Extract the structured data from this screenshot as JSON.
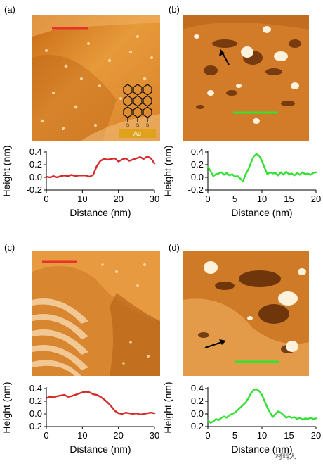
{
  "panels": [
    {
      "label": "(a)",
      "image": "stm-topography-gold-steps",
      "scalebar_color": "#e8322a",
      "inset_text": "Au",
      "molecule": "hexabenzocoronene-thiol-icon"
    },
    {
      "label": "(b)",
      "image": "stm-topography-islands-arrow",
      "scalebar_color": "#2ee62e"
    },
    {
      "label": "(c)",
      "image": "stm-topography-terraces",
      "scalebar_color": "#e8322a"
    },
    {
      "label": "(d)",
      "image": "stm-topography-islands-arrow",
      "scalebar_color": "#2ee62e"
    }
  ],
  "watermark": "材料人",
  "chart_data": [
    {
      "type": "line",
      "xlabel": "Distance (nm)",
      "ylabel": "Height (nm)",
      "xlim": [
        0,
        30
      ],
      "ylim": [
        -0.2,
        0.4
      ],
      "xticks": [
        0,
        10,
        20,
        30
      ],
      "yticks": [
        "0.4",
        "0.2",
        "0.0",
        "-0.2"
      ],
      "color": "#d42a2a",
      "series": [
        {
          "x": [
            0,
            1,
            2,
            3,
            4,
            5,
            6,
            7,
            8,
            9,
            10,
            11,
            12,
            13,
            14,
            15,
            16,
            17,
            18,
            19,
            20,
            21,
            22,
            23,
            24,
            25,
            26,
            27,
            28,
            29,
            30
          ],
          "y": [
            0.01,
            0.0,
            0.02,
            0.0,
            0.02,
            0.03,
            0.02,
            0.04,
            0.02,
            0.03,
            0.03,
            0.03,
            0.01,
            0.04,
            0.18,
            0.26,
            0.29,
            0.28,
            0.29,
            0.3,
            0.25,
            0.28,
            0.3,
            0.26,
            0.28,
            0.3,
            0.32,
            0.29,
            0.33,
            0.3,
            0.22
          ]
        }
      ]
    },
    {
      "type": "line",
      "xlabel": "Distance (nm)",
      "ylabel": "Height (nm)",
      "xlim": [
        0,
        20
      ],
      "ylim": [
        -0.2,
        0.4
      ],
      "xticks": [
        0,
        5,
        10,
        15,
        20
      ],
      "yticks": [
        "0.4",
        "0.2",
        "0.0",
        "-0.2"
      ],
      "color": "#33e033",
      "series": [
        {
          "x": [
            0,
            0.5,
            1,
            1.5,
            2,
            2.5,
            3,
            3.5,
            4,
            4.5,
            5,
            5.5,
            6,
            6.5,
            7,
            7.5,
            8,
            8.5,
            9,
            9.5,
            10,
            10.5,
            11,
            11.5,
            12,
            12.5,
            13,
            13.5,
            14,
            14.5,
            15,
            15.5,
            16,
            16.5,
            17,
            17.5,
            18,
            18.5,
            19,
            19.5,
            20
          ],
          "y": [
            0.17,
            0.1,
            0.02,
            0.05,
            0.06,
            0.08,
            0.04,
            0.07,
            0.03,
            0.05,
            0.01,
            0.02,
            -0.02,
            -0.06,
            0.05,
            0.13,
            0.24,
            0.33,
            0.37,
            0.34,
            0.26,
            0.15,
            0.05,
            0.08,
            0.06,
            0.07,
            0.03,
            0.08,
            0.04,
            0.09,
            0.05,
            0.06,
            0.03,
            0.07,
            0.04,
            0.08,
            0.05,
            0.06,
            0.04,
            0.07,
            0.08
          ]
        }
      ]
    },
    {
      "type": "line",
      "xlabel": "Distance (nm)",
      "ylabel": "Height (nm)",
      "xlim": [
        0,
        30
      ],
      "ylim": [
        -0.2,
        0.4
      ],
      "xticks": [
        0,
        10,
        20,
        30
      ],
      "yticks": [
        "0.4",
        "0.2",
        "0.0",
        "-0.2"
      ],
      "color": "#d42a2a",
      "series": [
        {
          "x": [
            0,
            1,
            2,
            3,
            4,
            5,
            6,
            7,
            8,
            9,
            10,
            11,
            12,
            13,
            14,
            15,
            16,
            17,
            18,
            19,
            20,
            21,
            22,
            23,
            24,
            25,
            26,
            27,
            28,
            29,
            30
          ],
          "y": [
            0.25,
            0.27,
            0.26,
            0.28,
            0.29,
            0.3,
            0.27,
            0.28,
            0.3,
            0.32,
            0.34,
            0.35,
            0.34,
            0.31,
            0.3,
            0.27,
            0.23,
            0.18,
            0.12,
            0.05,
            0.01,
            0.0,
            0.02,
            0.01,
            0.0,
            0.01,
            -0.01,
            0.0,
            0.01,
            0.02,
            0.01
          ]
        }
      ]
    },
    {
      "type": "line",
      "xlabel": "Distance (nm)",
      "ylabel": "Height (nm)",
      "xlim": [
        0,
        20
      ],
      "ylim": [
        -0.2,
        0.4
      ],
      "xticks": [
        0,
        5,
        10,
        15,
        20
      ],
      "yticks": [
        "0.4",
        "0.2",
        "0.0",
        "-0.2"
      ],
      "color": "#33e033",
      "series": [
        {
          "x": [
            0,
            0.5,
            1,
            1.5,
            2,
            2.5,
            3,
            3.5,
            4,
            4.5,
            5,
            5.5,
            6,
            6.5,
            7,
            7.5,
            8,
            8.5,
            9,
            9.5,
            10,
            10.5,
            11,
            11.5,
            12,
            12.5,
            13,
            13.5,
            14,
            14.5,
            15,
            15.5,
            16,
            16.5,
            17,
            17.5,
            18,
            18.5,
            19,
            19.5,
            20
          ],
          "y": [
            -0.1,
            -0.14,
            -0.12,
            -0.08,
            -0.1,
            -0.06,
            -0.04,
            -0.06,
            -0.02,
            0.0,
            0.02,
            0.06,
            0.1,
            0.14,
            0.18,
            0.25,
            0.33,
            0.38,
            0.39,
            0.36,
            0.3,
            0.2,
            0.1,
            0.02,
            -0.05,
            0.0,
            0.04,
            0.02,
            -0.02,
            -0.06,
            -0.04,
            -0.06,
            -0.05,
            -0.08,
            -0.06,
            -0.09,
            -0.07,
            -0.08,
            -0.06,
            -0.08,
            -0.07
          ]
        }
      ]
    }
  ]
}
